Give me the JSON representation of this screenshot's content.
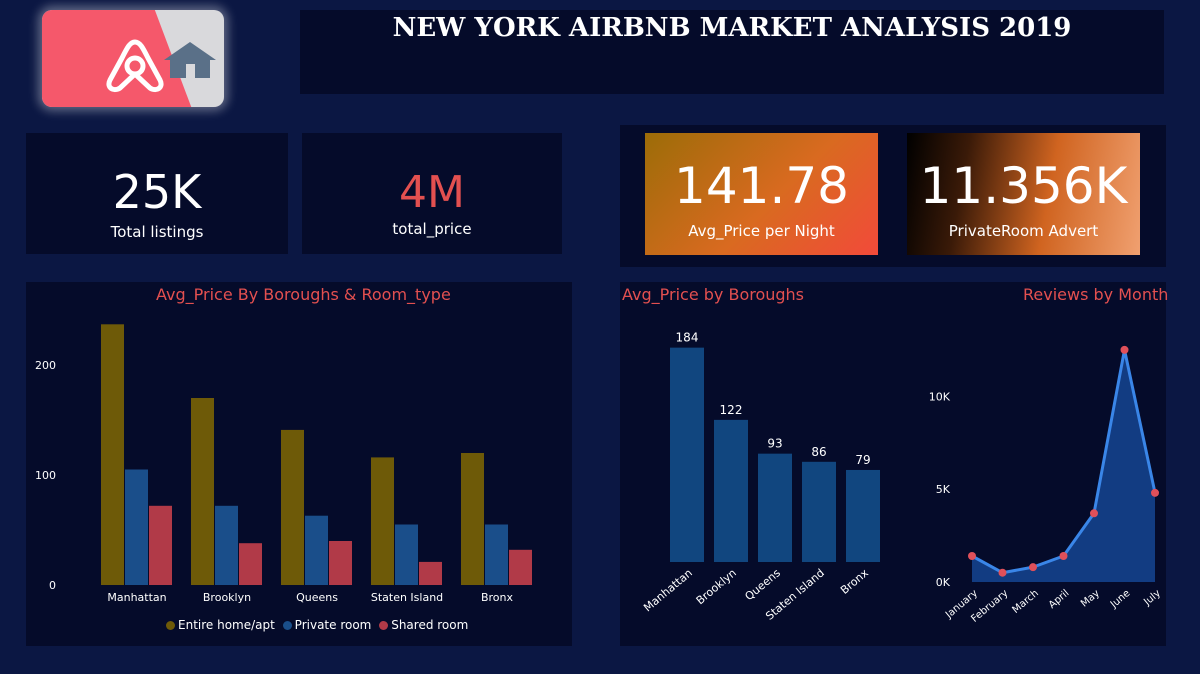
{
  "header": {
    "title": "NEW YORK AIRBNB MARKET ANALYSIS 2019",
    "logo_icon": "airbnb-logo-icon",
    "home_icon": "home-icon"
  },
  "kpis": {
    "total_listings": {
      "value": "25K",
      "label": "Total listings"
    },
    "total_price": {
      "value": "4M",
      "label": "total_price"
    },
    "avg_price": {
      "value": "141.78",
      "label": "Avg_Price per Night"
    },
    "private_room": {
      "value": "11.356K",
      "label": "PrivateRoom Advert"
    }
  },
  "colors": {
    "entire": "#6e5a08",
    "private": "#1a4e8a",
    "shared": "#b13a48",
    "accent_title": "#e35050",
    "line": "#3a86e8",
    "point": "#e0505a"
  },
  "chart_data": [
    {
      "type": "bar",
      "title": "Avg_Price By Boroughs & Room_type",
      "categories": [
        "Manhattan",
        "Brooklyn",
        "Queens",
        "Staten Island",
        "Bronx"
      ],
      "series": [
        {
          "name": "Entire home/apt",
          "values": [
            237,
            170,
            141,
            116,
            120
          ]
        },
        {
          "name": "Private room",
          "values": [
            105,
            72,
            63,
            55,
            55
          ]
        },
        {
          "name": "Shared room",
          "values": [
            72,
            38,
            40,
            21,
            32
          ]
        }
      ],
      "yticks": [
        0,
        100,
        200
      ],
      "ylim": [
        0,
        250
      ],
      "legend": "bottom"
    },
    {
      "type": "bar",
      "title": "Avg_Price by Boroughs",
      "categories": [
        "Manhattan",
        "Brooklyn",
        "Queens",
        "Staten Island",
        "Bronx"
      ],
      "values": [
        184,
        122,
        93,
        86,
        79
      ]
    },
    {
      "type": "area",
      "title": "Reviews by Month",
      "categories": [
        "January",
        "February",
        "March",
        "April",
        "May",
        "June",
        "July"
      ],
      "values": [
        1400,
        500,
        800,
        1400,
        3700,
        12500,
        4800
      ],
      "yticks": [
        "0K",
        "5K",
        "10K"
      ],
      "ylim": [
        0,
        14000
      ]
    }
  ]
}
